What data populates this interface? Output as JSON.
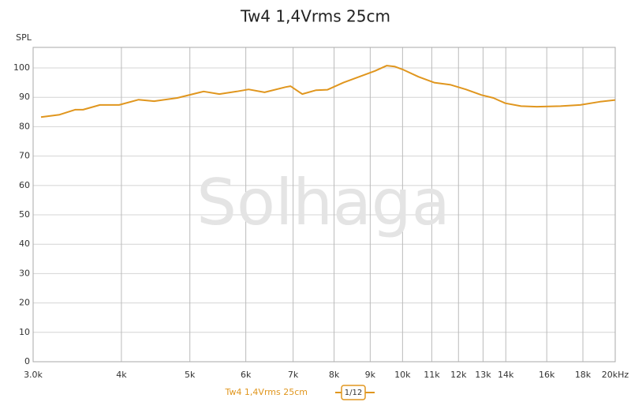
{
  "chart_data": {
    "type": "line",
    "title": "Tw4 1,4Vrms 25cm",
    "y_label": "SPL",
    "watermark": "Solhaga",
    "smoothing": "1/12",
    "x_log": true,
    "grid": true,
    "xlim": [
      3000,
      20000
    ],
    "ylim": [
      0,
      107
    ],
    "xticks": [
      {
        "value": 3000,
        "label": "3.0k"
      },
      {
        "value": 4000,
        "label": "4k"
      },
      {
        "value": 5000,
        "label": "5k"
      },
      {
        "value": 6000,
        "label": "6k"
      },
      {
        "value": 7000,
        "label": "7k"
      },
      {
        "value": 8000,
        "label": "8k"
      },
      {
        "value": 9000,
        "label": "9k"
      },
      {
        "value": 10000,
        "label": "10k"
      },
      {
        "value": 11000,
        "label": "11k"
      },
      {
        "value": 12000,
        "label": "12k"
      },
      {
        "value": 13000,
        "label": "13k"
      },
      {
        "value": 14000,
        "label": "14k"
      },
      {
        "value": 16000,
        "label": "16k"
      },
      {
        "value": 18000,
        "label": "18k"
      },
      {
        "value": 20000,
        "label": "20kHz"
      }
    ],
    "yticks": [
      0,
      10,
      20,
      30,
      40,
      50,
      60,
      70,
      80,
      90,
      100
    ],
    "x": [
      3078,
      3270,
      3440,
      3530,
      3730,
      3970,
      4230,
      4450,
      4800,
      5230,
      5505,
      5826,
      6055,
      6378,
      6835,
      6940,
      7212,
      7536,
      7833,
      8248,
      8683,
      9141,
      9500,
      9746,
      10002,
      10532,
      11088,
      11674,
      12290,
      12937,
      13443,
      13976,
      14713,
      15490,
      16731,
      17845,
      19027,
      20000
    ],
    "series": [
      {
        "name": "Tw4 1,4Vrms 25cm",
        "color": "#e0961e",
        "values": [
          83.3,
          84.1,
          85.8,
          85.8,
          87.4,
          87.4,
          89.2,
          88.7,
          89.8,
          92.0,
          91.1,
          92.0,
          92.7,
          91.7,
          93.5,
          93.8,
          91.1,
          92.4,
          92.6,
          95.0,
          97.0,
          99.0,
          100.8,
          100.5,
          99.5,
          97.0,
          95.0,
          94.3,
          92.7,
          90.8,
          89.8,
          88.0,
          87.0,
          86.8,
          87.0,
          87.4,
          88.5,
          89.1
        ]
      }
    ]
  }
}
